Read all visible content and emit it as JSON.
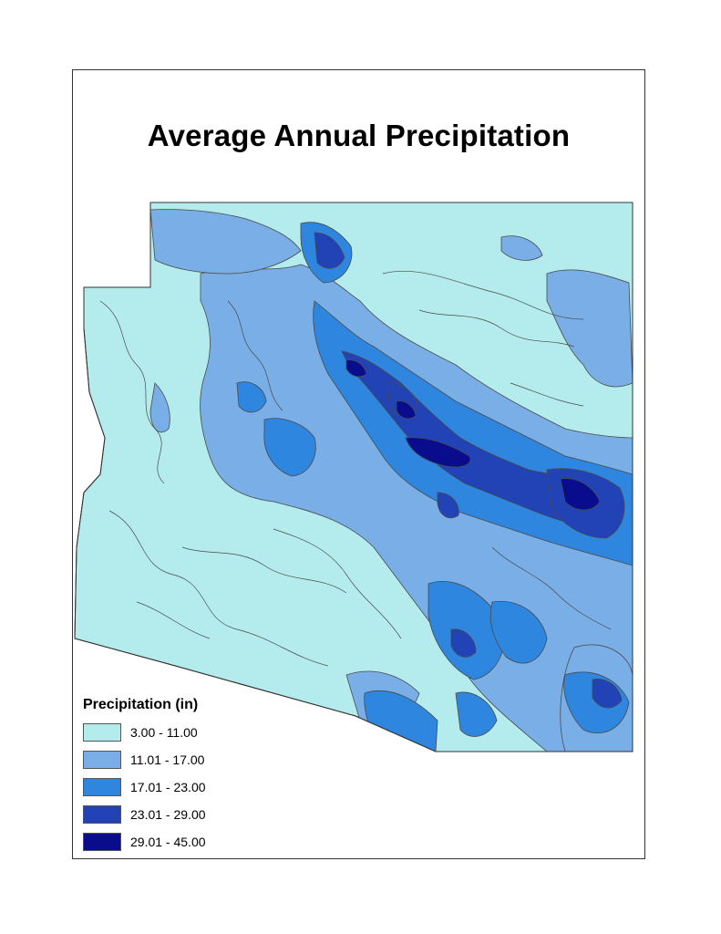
{
  "title": "Average Annual Precipitation",
  "legend": {
    "title": "Precipitation (in)",
    "items": [
      {
        "label": "3.00 - 11.00",
        "color": "#b4ebec"
      },
      {
        "label": "11.01 - 17.00",
        "color": "#79aee6"
      },
      {
        "label": "17.01 - 23.00",
        "color": "#2f86de"
      },
      {
        "label": "23.01 - 29.00",
        "color": "#2143b6"
      },
      {
        "label": "29.01 - 45.00",
        "color": "#0a0c8e"
      }
    ]
  },
  "colors": {
    "contour": "#4a4a4a",
    "frame": "#333333"
  }
}
